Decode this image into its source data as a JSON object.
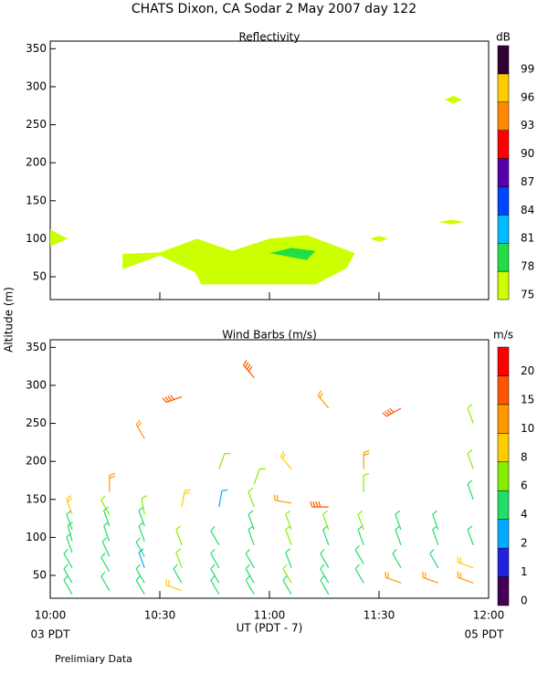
{
  "chart_data": [
    {
      "type": "contour",
      "title": "CHATS Dixon, CA  Sodar   2 May 2007  day 122",
      "subtitle": "Reflectivity",
      "xlim": [
        10,
        12
      ],
      "xticks": [
        10,
        10.5,
        11,
        11.5,
        12
      ],
      "ylim": [
        20,
        360
      ],
      "yticks": [
        50,
        100,
        150,
        200,
        250,
        300,
        350
      ],
      "colorbar": {
        "label": "dB",
        "levels": [
          75,
          78,
          81,
          84,
          87,
          90,
          93,
          96,
          99
        ],
        "colors": [
          "#ccff00",
          "#22dd44",
          "#00bbff",
          "#0044ff",
          "#5500aa",
          "#ff0000",
          "#ff8800",
          "#ffcc00",
          "#330033"
        ]
      },
      "regions": [
        {
          "level": 75,
          "x": [
            10,
            10.08,
            10
          ],
          "y": [
            112,
            100,
            90
          ]
        },
        {
          "level": 75,
          "x": [
            10.33,
            10.5,
            10.67,
            10.83,
            11,
            11.17,
            11.39,
            11.35,
            11.21,
            10.69,
            10.66,
            10.5,
            10.33
          ],
          "y": [
            80,
            82,
            100,
            84,
            100,
            105,
            81,
            61,
            40,
            40,
            56,
            78,
            60
          ]
        },
        {
          "level": 78,
          "x": [
            11,
            11.1,
            11.21,
            11.17,
            11.04
          ],
          "y": [
            81,
            88,
            84,
            72,
            79
          ]
        },
        {
          "level": 75,
          "x": [
            11.46,
            11.5,
            11.54,
            11.5
          ],
          "y": [
            100,
            104,
            100,
            96
          ]
        },
        {
          "level": 75,
          "x": [
            11.77,
            11.83,
            11.89,
            11.83
          ],
          "y": [
            122,
            125,
            122,
            119
          ]
        },
        {
          "level": 75,
          "x": [
            11.8,
            11.84,
            11.88,
            11.84
          ],
          "y": [
            283,
            288,
            283,
            278
          ]
        }
      ]
    },
    {
      "type": "barbs",
      "subtitle": "Wind Barbs (m/s)",
      "ylabel": "Altitude (m)",
      "xlabel": "UT  (PDT - 7)",
      "x_end_labels": [
        "03 PDT",
        "05 PDT"
      ],
      "note": "Prelimiary Data",
      "xlim": [
        10,
        12
      ],
      "xticks": [
        {
          "value": 10,
          "label": "10:00"
        },
        {
          "value": 10.5,
          "label": "10:30"
        },
        {
          "value": 11,
          "label": "11:00"
        },
        {
          "value": 11.5,
          "label": "11:30"
        },
        {
          "value": 12,
          "label": "12:00"
        }
      ],
      "ylim": [
        20,
        360
      ],
      "yticks": [
        50,
        100,
        150,
        200,
        250,
        300,
        350
      ],
      "colorbar": {
        "label": "m/s",
        "levels": [
          0,
          1,
          2,
          4,
          6,
          8,
          10,
          15,
          20
        ],
        "colors": [
          "#440055",
          "#2222dd",
          "#00aaff",
          "#22dd66",
          "#88ee00",
          "#ffcc00",
          "#ff9900",
          "#ff5500",
          "#ff0000"
        ]
      },
      "barbs": {
        "x": [
          10.1,
          10.1,
          10.1,
          10.1,
          10.1,
          10.1,
          10.1,
          10.27,
          10.27,
          10.27,
          10.27,
          10.27,
          10.27,
          10.27,
          10.43,
          10.43,
          10.43,
          10.43,
          10.43,
          10.43,
          10.43,
          10.43,
          10.6,
          10.6,
          10.6,
          10.6,
          10.6,
          10.6,
          10.77,
          10.77,
          10.77,
          10.77,
          10.77,
          10.77,
          10.93,
          10.93,
          10.93,
          10.93,
          10.93,
          10.93,
          10.93,
          10.93,
          11.1,
          11.1,
          11.1,
          11.1,
          11.1,
          11.1,
          11.1,
          11.27,
          11.27,
          11.27,
          11.27,
          11.27,
          11.27,
          11.27,
          11.43,
          11.43,
          11.43,
          11.43,
          11.43,
          11.43,
          11.6,
          11.6,
          11.6,
          11.6,
          11.6,
          11.77,
          11.77,
          11.77,
          11.77,
          11.93,
          11.93,
          11.93,
          11.93,
          11.93,
          11.93
        ],
        "y": [
          130,
          110,
          95,
          80,
          60,
          40,
          25,
          160,
          130,
          115,
          95,
          75,
          55,
          30,
          230,
          130,
          115,
          95,
          75,
          60,
          40,
          25,
          285,
          140,
          90,
          60,
          40,
          30,
          190,
          140,
          90,
          60,
          40,
          25,
          310,
          170,
          140,
          110,
          90,
          60,
          40,
          25,
          190,
          145,
          110,
          90,
          60,
          40,
          25,
          270,
          140,
          110,
          90,
          60,
          40,
          25,
          190,
          160,
          110,
          90,
          65,
          40,
          270,
          110,
          90,
          60,
          40,
          110,
          90,
          60,
          40,
          250,
          190,
          150,
          90,
          60,
          40
        ],
        "speed": [
          8,
          5,
          5,
          4,
          4,
          4,
          4,
          12,
          6,
          5,
          5,
          5,
          5,
          5,
          12,
          6,
          5,
          5,
          4,
          3,
          4,
          4,
          18,
          8,
          6,
          6,
          5,
          8,
          6,
          3,
          5,
          5,
          5,
          5,
          18,
          6,
          6,
          5,
          5,
          5,
          5,
          5,
          9,
          10,
          7,
          6,
          5,
          6,
          5,
          12,
          18,
          6,
          5,
          5,
          5,
          5,
          10,
          7,
          6,
          5,
          5,
          5,
          18,
          5,
          5,
          4,
          10,
          5,
          5,
          5,
          10,
          7,
          6,
          5,
          5,
          8,
          10
        ],
        "dir": [
          340,
          340,
          345,
          340,
          330,
          330,
          330,
          0,
          330,
          340,
          340,
          335,
          330,
          330,
          330,
          350,
          340,
          340,
          330,
          340,
          330,
          330,
          250,
          10,
          340,
          340,
          330,
          290,
          20,
          10,
          330,
          330,
          330,
          330,
          320,
          20,
          340,
          340,
          340,
          330,
          330,
          330,
          320,
          280,
          340,
          340,
          340,
          330,
          330,
          320,
          270,
          340,
          340,
          330,
          330,
          330,
          0,
          0,
          340,
          340,
          330,
          330,
          240,
          340,
          340,
          330,
          290,
          340,
          340,
          330,
          290,
          340,
          340,
          340,
          340,
          290,
          290
        ]
      }
    }
  ]
}
